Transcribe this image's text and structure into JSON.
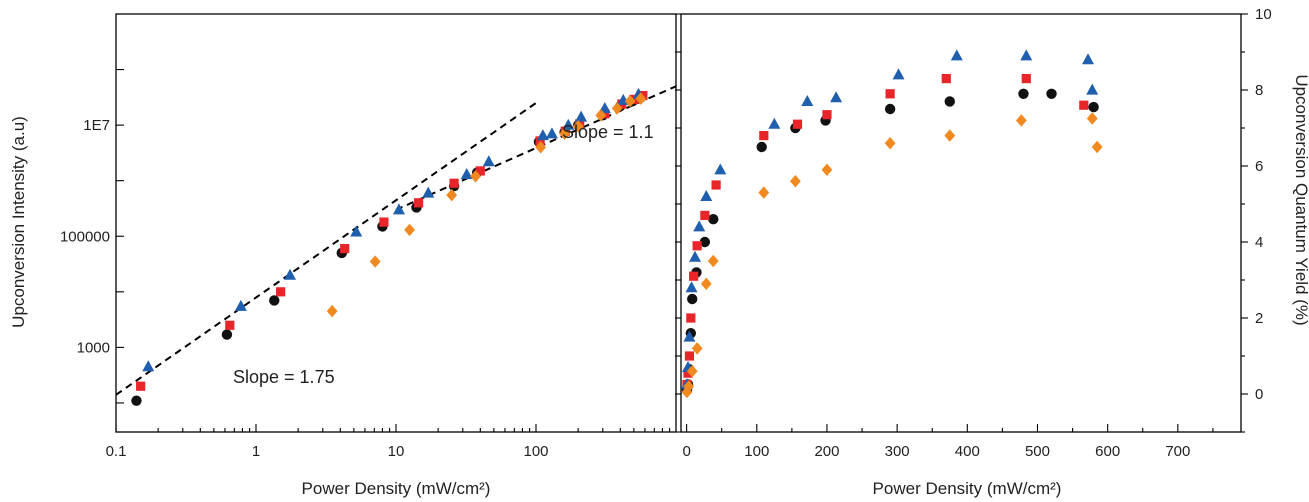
{
  "colors": {
    "series_black": "#111111",
    "series_red": "#e8262a",
    "series_blue": "#1f5fae",
    "series_orange": "#f0891f"
  },
  "chart_data": [
    {
      "type": "scatter",
      "xscale": "log",
      "yscale": "log",
      "xlim": [
        0.1,
        1000
      ],
      "ylim": [
        30,
        1000000000
      ],
      "xticks": [
        0.1,
        1,
        10,
        100
      ],
      "xtick_labels": [
        "0.1",
        "1",
        "10",
        "100"
      ],
      "yticks": [
        1000,
        100000,
        10000000
      ],
      "ytick_labels": [
        "1000",
        "100000",
        "1E7"
      ],
      "xlabel": "Power Density (mW/cm²)",
      "ylabel": "Upconversion Intensity (a.u)",
      "annotations": [
        {
          "text": "Slope = 1.75",
          "x": 0.25,
          "y": 250
        },
        {
          "text": "Slope = 1.1",
          "x": 160,
          "y": 3000000
        }
      ],
      "fit_lines": [
        {
          "slope_label": "1.75",
          "points": [
            [
              0.1,
              140
            ],
            [
              100,
              25000000
            ]
          ]
        },
        {
          "slope_label": "1.1",
          "points": [
            [
              10,
              300000
            ],
            [
              1000,
              50000000
            ]
          ]
        }
      ],
      "series": [
        {
          "marker": "circle",
          "color": "#111111",
          "points": [
            [
              0.14,
              110
            ],
            [
              0.62,
              1700
            ],
            [
              1.35,
              7000
            ],
            [
              4.1,
              50000
            ],
            [
              8.0,
              150000
            ],
            [
              14,
              330000
            ],
            [
              26,
              800000
            ],
            [
              38,
              1400000
            ],
            [
              105,
              5000000
            ],
            [
              160,
              7500000
            ],
            [
              200,
              10000000
            ],
            [
              300,
              15000000
            ],
            [
              400,
              22000000
            ],
            [
              490,
              27000000
            ],
            [
              560,
              32000000
            ]
          ]
        },
        {
          "marker": "square",
          "color": "#e8262a",
          "points": [
            [
              0.15,
              200
            ],
            [
              0.65,
              2500
            ],
            [
              1.5,
              10000
            ],
            [
              4.3,
              60000
            ],
            [
              8.2,
              180000
            ],
            [
              14.5,
              400000
            ],
            [
              26,
              900000
            ],
            [
              40,
              1500000
            ],
            [
              107,
              5200000
            ],
            [
              162,
              7800000
            ],
            [
              205,
              10500000
            ],
            [
              310,
              16000000
            ],
            [
              410,
              24000000
            ],
            [
              500,
              29000000
            ],
            [
              580,
              34000000
            ]
          ]
        },
        {
          "marker": "triangle",
          "color": "#1f5fae",
          "points": [
            [
              0.17,
              450
            ],
            [
              0.78,
              5500
            ],
            [
              1.75,
              20000
            ],
            [
              5.2,
              120000
            ],
            [
              10.5,
              300000
            ],
            [
              17,
              600000
            ],
            [
              32,
              1300000
            ],
            [
              46,
              2200000
            ],
            [
              112,
              6500000
            ],
            [
              130,
              7000000
            ],
            [
              170,
              10000000
            ],
            [
              210,
              14000000
            ],
            [
              310,
              20000000
            ],
            [
              420,
              28000000
            ],
            [
              540,
              36000000
            ]
          ]
        },
        {
          "marker": "diamond",
          "color": "#f0891f",
          "points": [
            [
              3.5,
              4500
            ],
            [
              7.1,
              35000
            ],
            [
              12.5,
              130000
            ],
            [
              25,
              550000
            ],
            [
              37,
              1200000
            ],
            [
              108,
              4000000
            ],
            [
              160,
              7000000
            ],
            [
              200,
              9500000
            ],
            [
              290,
              15000000
            ],
            [
              380,
              20000000
            ],
            [
              470,
              27000000
            ],
            [
              560,
              30000000
            ]
          ]
        }
      ]
    },
    {
      "type": "scatter",
      "xlim": [
        -8,
        790
      ],
      "ylim": [
        -1,
        10
      ],
      "xticks": [
        0,
        100,
        200,
        300,
        400,
        500,
        600,
        700
      ],
      "xtick_labels": [
        "0",
        "100",
        "200",
        "300",
        "400",
        "500",
        "600",
        "700"
      ],
      "yticks": [
        0,
        2,
        4,
        6,
        8,
        10
      ],
      "ytick_labels": [
        "0",
        "2",
        "4",
        "6",
        "8",
        "10"
      ],
      "xlabel": "Power Density (mW/cm²)",
      "ylabel": "Upconversion Quantum Yield (%)",
      "series": [
        {
          "marker": "circle",
          "color": "#111111",
          "points": [
            [
              0.5,
              0.1
            ],
            [
              2,
              0.25
            ],
            [
              4,
              0.65
            ],
            [
              6,
              1.6
            ],
            [
              8,
              2.5
            ],
            [
              14,
              3.2
            ],
            [
              26,
              4.0
            ],
            [
              38,
              4.6
            ],
            [
              107,
              6.5
            ],
            [
              155,
              7.0
            ],
            [
              198,
              7.2
            ],
            [
              290,
              7.5
            ],
            [
              375,
              7.7
            ],
            [
              480,
              7.9
            ],
            [
              520,
              7.9
            ],
            [
              580,
              7.55
            ]
          ]
        },
        {
          "marker": "square",
          "color": "#e8262a",
          "points": [
            [
              0.5,
              0.25
            ],
            [
              2,
              0.55
            ],
            [
              4,
              1.0
            ],
            [
              6,
              2.0
            ],
            [
              10,
              3.1
            ],
            [
              15,
              3.9
            ],
            [
              26,
              4.7
            ],
            [
              42,
              5.5
            ],
            [
              110,
              6.8
            ],
            [
              158,
              7.1
            ],
            [
              200,
              7.35
            ],
            [
              290,
              7.9
            ],
            [
              370,
              8.3
            ],
            [
              484,
              8.3
            ],
            [
              566,
              7.6
            ]
          ]
        },
        {
          "marker": "triangle",
          "color": "#1f5fae",
          "points": [
            [
              0.5,
              0.25
            ],
            [
              2,
              0.7
            ],
            [
              4,
              1.5
            ],
            [
              7,
              2.8
            ],
            [
              12,
              3.6
            ],
            [
              18,
              4.4
            ],
            [
              28,
              5.2
            ],
            [
              48,
              5.9
            ],
            [
              125,
              7.1
            ],
            [
              172,
              7.7
            ],
            [
              213,
              7.8
            ],
            [
              302,
              8.4
            ],
            [
              385,
              8.9
            ],
            [
              484,
              8.9
            ],
            [
              572,
              8.8
            ],
            [
              578,
              8.0
            ]
          ]
        },
        {
          "marker": "diamond",
          "color": "#f0891f",
          "points": [
            [
              0.5,
              0.05
            ],
            [
              3,
              0.2
            ],
            [
              8,
              0.6
            ],
            [
              15,
              1.2
            ],
            [
              28,
              2.9
            ],
            [
              38,
              3.5
            ],
            [
              110,
              5.3
            ],
            [
              155,
              5.6
            ],
            [
              200,
              5.9
            ],
            [
              290,
              6.6
            ],
            [
              375,
              6.8
            ],
            [
              477,
              7.2
            ],
            [
              578,
              7.25
            ],
            [
              585,
              6.5
            ]
          ]
        }
      ]
    }
  ]
}
